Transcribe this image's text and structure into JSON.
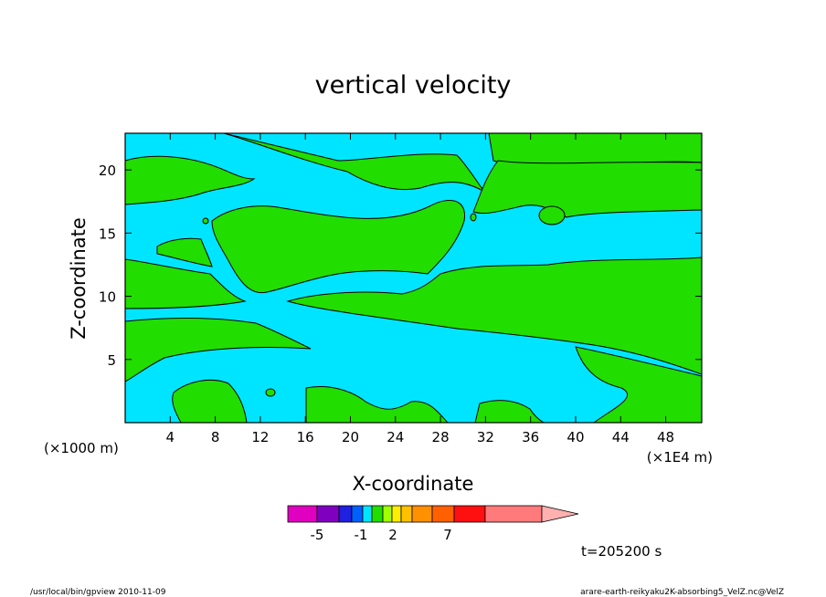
{
  "chart_data": {
    "type": "contour",
    "title": "vertical velocity",
    "xlabel": "X-coordinate",
    "ylabel": "Z-coordinate",
    "x_unit_label": "(×1000 m)",
    "x_unit_label_right": "(×1E4 m)",
    "xlim": [
      0,
      51.2
    ],
    "ylim": [
      0,
      22.9
    ],
    "x_ticks": [
      4,
      8,
      12,
      16,
      20,
      24,
      28,
      32,
      36,
      40,
      44,
      48
    ],
    "y_ticks": [
      5,
      10,
      15,
      20
    ],
    "colors": {
      "negative_region": "#00e5ff",
      "positive_region": "#22dd00",
      "contour_line": "#000000"
    },
    "colorbar": {
      "colors": [
        "#e000c0",
        "#8000c0",
        "#2020e0",
        "#0060ff",
        "#00e5ff",
        "#22dd00",
        "#a0ff00",
        "#ffee00",
        "#ffc000",
        "#ff9000",
        "#ff6000",
        "#ff1010",
        "#ff7a7a",
        "#ffb0b0"
      ],
      "tick_labels": [
        "-5",
        "-1",
        "2",
        "7"
      ],
      "tick_values": [
        -5,
        -1,
        2,
        7
      ]
    },
    "time_label": "t=205200 s",
    "footer_left": "/usr/local/bin/gpview  2010-11-09",
    "footer_right": "arare-earth-reikyaku2K-absorbing5_VelZ.nc@VelZ"
  }
}
